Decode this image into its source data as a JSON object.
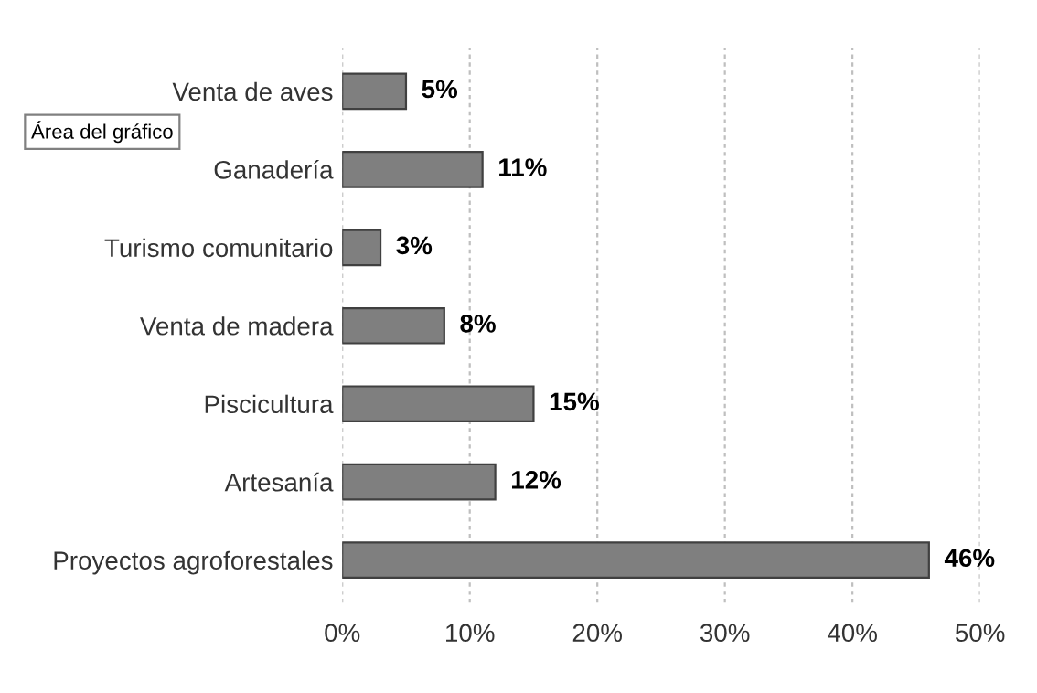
{
  "chart_data": {
    "type": "bar",
    "orientation": "horizontal",
    "categories": [
      "Venta de aves",
      "Ganadería",
      "Turismo comunitario",
      "Venta de madera",
      "Piscicultura",
      "Artesanía",
      "Proyectos agroforestales"
    ],
    "values": [
      5,
      11,
      3,
      8,
      15,
      12,
      46
    ],
    "value_labels": [
      "5%",
      "11%",
      "3%",
      "8%",
      "15%",
      "12%",
      "46%"
    ],
    "color": "#7f7f7f",
    "xlim": [
      0,
      50
    ],
    "xticks": [
      {
        "value": 0,
        "label": "0%"
      },
      {
        "value": 10,
        "label": "10%"
      },
      {
        "value": 20,
        "label": "20%"
      },
      {
        "value": 30,
        "label": "30%"
      },
      {
        "value": 40,
        "label": "40%"
      },
      {
        "value": 50,
        "label": "50%"
      }
    ],
    "grid": "x",
    "annotations": [
      "Área del gráfico"
    ]
  }
}
